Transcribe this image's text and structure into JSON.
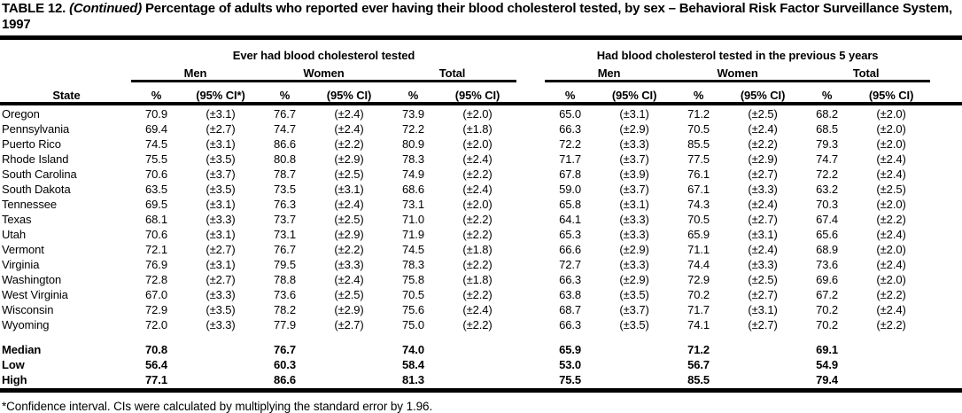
{
  "title": {
    "prefix": "TABLE 12.",
    "continued": "(Continued)",
    "rest": "Percentage of adults who reported ever having their blood cholesterol tested, by sex – Behavioral Risk Factor Surveillance System, 1997"
  },
  "table": {
    "state_header": "State",
    "groups": [
      {
        "label": "Ever had blood cholesterol tested",
        "subgroups": [
          "Men",
          "Women",
          "Total"
        ]
      },
      {
        "label": "Had blood cholesterol tested in the previous 5 years",
        "subgroups": [
          "Men",
          "Women",
          "Total"
        ]
      }
    ],
    "col_headers": [
      "%",
      "(95% CI*)",
      "%",
      "(95% CI)",
      "%",
      "(95% CI)",
      "%",
      "(95% CI)",
      "%",
      "(95% CI)",
      "%",
      "(95% CI)"
    ],
    "rows": [
      {
        "state": "Oregon",
        "values": [
          "70.9",
          "(±3.1)",
          "76.7",
          "(±2.4)",
          "73.9",
          "(±2.0)",
          "65.0",
          "(±3.1)",
          "71.2",
          "(±2.5)",
          "68.2",
          "(±2.0)"
        ]
      },
      {
        "state": "Pennsylvania",
        "values": [
          "69.4",
          "(±2.7)",
          "74.7",
          "(±2.4)",
          "72.2",
          "(±1.8)",
          "66.3",
          "(±2.9)",
          "70.5",
          "(±2.4)",
          "68.5",
          "(±2.0)"
        ]
      },
      {
        "state": "Puerto Rico",
        "values": [
          "74.5",
          "(±3.1)",
          "86.6",
          "(±2.2)",
          "80.9",
          "(±2.0)",
          "72.2",
          "(±3.3)",
          "85.5",
          "(±2.2)",
          "79.3",
          "(±2.0)"
        ]
      },
      {
        "state": "Rhode Island",
        "values": [
          "75.5",
          "(±3.5)",
          "80.8",
          "(±2.9)",
          "78.3",
          "(±2.4)",
          "71.7",
          "(±3.7)",
          "77.5",
          "(±2.9)",
          "74.7",
          "(±2.4)"
        ]
      },
      {
        "state": "South Carolina",
        "values": [
          "70.6",
          "(±3.7)",
          "78.7",
          "(±2.5)",
          "74.9",
          "(±2.2)",
          "67.8",
          "(±3.9)",
          "76.1",
          "(±2.7)",
          "72.2",
          "(±2.4)"
        ]
      },
      {
        "state": "South Dakota",
        "values": [
          "63.5",
          "(±3.5)",
          "73.5",
          "(±3.1)",
          "68.6",
          "(±2.4)",
          "59.0",
          "(±3.7)",
          "67.1",
          "(±3.3)",
          "63.2",
          "(±2.5)"
        ]
      },
      {
        "state": "Tennessee",
        "values": [
          "69.5",
          "(±3.1)",
          "76.3",
          "(±2.4)",
          "73.1",
          "(±2.0)",
          "65.8",
          "(±3.1)",
          "74.3",
          "(±2.4)",
          "70.3",
          "(±2.0)"
        ]
      },
      {
        "state": "Texas",
        "values": [
          "68.1",
          "(±3.3)",
          "73.7",
          "(±2.5)",
          "71.0",
          "(±2.2)",
          "64.1",
          "(±3.3)",
          "70.5",
          "(±2.7)",
          "67.4",
          "(±2.2)"
        ]
      },
      {
        "state": "Utah",
        "values": [
          "70.6",
          "(±3.1)",
          "73.1",
          "(±2.9)",
          "71.9",
          "(±2.2)",
          "65.3",
          "(±3.3)",
          "65.9",
          "(±3.1)",
          "65.6",
          "(±2.4)"
        ]
      },
      {
        "state": "Vermont",
        "values": [
          "72.1",
          "(±2.7)",
          "76.7",
          "(±2.2)",
          "74.5",
          "(±1.8)",
          "66.6",
          "(±2.9)",
          "71.1",
          "(±2.4)",
          "68.9",
          "(±2.0)"
        ]
      },
      {
        "state": "Virginia",
        "values": [
          "76.9",
          "(±3.1)",
          "79.5",
          "(±3.3)",
          "78.3",
          "(±2.2)",
          "72.7",
          "(±3.3)",
          "74.4",
          "(±3.3)",
          "73.6",
          "(±2.4)"
        ]
      },
      {
        "state": "Washington",
        "values": [
          "72.8",
          "(±2.7)",
          "78.8",
          "(±2.4)",
          "75.8",
          "(±1.8)",
          "66.3",
          "(±2.9)",
          "72.9",
          "(±2.5)",
          "69.6",
          "(±2.0)"
        ]
      },
      {
        "state": "West Virginia",
        "values": [
          "67.0",
          "(±3.3)",
          "73.6",
          "(±2.5)",
          "70.5",
          "(±2.2)",
          "63.8",
          "(±3.5)",
          "70.2",
          "(±2.7)",
          "67.2",
          "(±2.2)"
        ]
      },
      {
        "state": "Wisconsin",
        "values": [
          "72.9",
          "(±3.5)",
          "78.2",
          "(±2.9)",
          "75.6",
          "(±2.4)",
          "68.7",
          "(±3.7)",
          "71.7",
          "(±3.1)",
          "70.2",
          "(±2.4)"
        ]
      },
      {
        "state": "Wyoming",
        "values": [
          "72.0",
          "(±3.3)",
          "77.9",
          "(±2.7)",
          "75.0",
          "(±2.2)",
          "66.3",
          "(±3.5)",
          "74.1",
          "(±2.7)",
          "70.2",
          "(±2.2)"
        ]
      }
    ],
    "summary_rows": [
      {
        "label": "Median",
        "values": [
          "70.8",
          "76.7",
          "74.0",
          "65.9",
          "71.2",
          "69.1"
        ]
      },
      {
        "label": "Low",
        "values": [
          "56.4",
          "60.3",
          "58.4",
          "53.0",
          "56.7",
          "54.9"
        ]
      },
      {
        "label": "High",
        "values": [
          "77.1",
          "86.6",
          "81.3",
          "75.5",
          "85.5",
          "79.4"
        ]
      }
    ]
  },
  "footnote": "*Confidence interval. CIs were calculated by multiplying the standard error by 1.96."
}
